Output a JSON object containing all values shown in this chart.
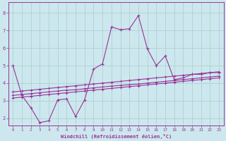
{
  "xlabel": "Windchill (Refroidissement éolien,°C)",
  "background_color": "#cce8ee",
  "grid_color": "#aacccc",
  "line_color": "#993399",
  "x_ticks": [
    0,
    1,
    2,
    3,
    4,
    5,
    6,
    7,
    8,
    9,
    10,
    11,
    12,
    13,
    14,
    15,
    16,
    17,
    18,
    19,
    20,
    21,
    22,
    23
  ],
  "y_ticks": [
    2,
    3,
    4,
    5,
    6,
    7,
    8
  ],
  "xlim": [
    -0.5,
    23.5
  ],
  "ylim": [
    1.6,
    8.6
  ],
  "series": [
    [
      5.0,
      3.3,
      2.6,
      1.75,
      1.85,
      3.05,
      3.1,
      2.1,
      3.05,
      4.8,
      5.1,
      7.2,
      7.05,
      7.1,
      7.85,
      5.95,
      5.0,
      5.55,
      4.2,
      4.3,
      4.5,
      4.5,
      4.6,
      4.6
    ],
    [
      3.3,
      3.35,
      3.4,
      3.45,
      3.5,
      3.55,
      3.6,
      3.62,
      3.68,
      3.73,
      3.78,
      3.83,
      3.87,
      3.91,
      3.95,
      4.0,
      4.05,
      4.1,
      4.15,
      4.2,
      4.25,
      4.3,
      4.35,
      4.4
    ],
    [
      3.15,
      3.2,
      3.25,
      3.3,
      3.35,
      3.4,
      3.45,
      3.5,
      3.55,
      3.6,
      3.65,
      3.7,
      3.75,
      3.8,
      3.85,
      3.9,
      3.95,
      4.0,
      4.05,
      4.1,
      4.15,
      4.2,
      4.25,
      4.3
    ],
    [
      3.5,
      3.55,
      3.6,
      3.65,
      3.7,
      3.75,
      3.8,
      3.85,
      3.9,
      3.95,
      4.0,
      4.05,
      4.1,
      4.15,
      4.2,
      4.25,
      4.3,
      4.35,
      4.4,
      4.45,
      4.5,
      4.55,
      4.6,
      4.65
    ]
  ]
}
